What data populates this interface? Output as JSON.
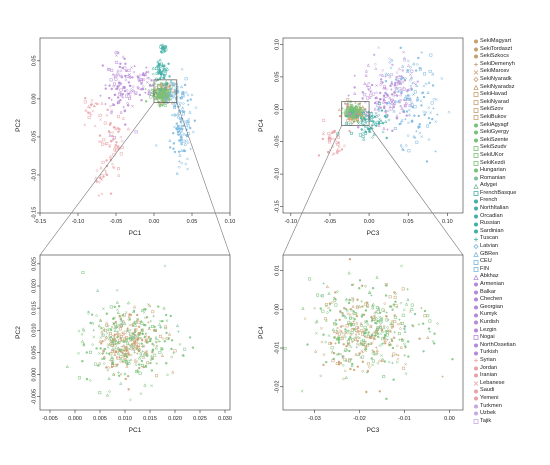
{
  "colors": {
    "szekely": "#c8a070",
    "hungarian": "#77c277",
    "romanian": "#7fbf9a",
    "western": "#42b0a6",
    "european": "#79b7e0",
    "caucasus": "#b789d8",
    "middle_east": "#e8a1a6",
    "central_asia": "#c7a9e0"
  },
  "legend": [
    {
      "label": "SekiMagyart",
      "group": "szekely",
      "symbol": "dot"
    },
    {
      "label": "SekiTordaszt",
      "group": "szekely",
      "symbol": "dot"
    },
    {
      "label": "SekiSzkocs",
      "group": "szekely",
      "symbol": "dot"
    },
    {
      "label": "SekiDemenyh",
      "group": "szekely",
      "symbol": "plus"
    },
    {
      "label": "SekiMarosv",
      "group": "szekely",
      "symbol": "cross"
    },
    {
      "label": "SekiNyaradk",
      "group": "szekely",
      "symbol": "diamond"
    },
    {
      "label": "SekiNyaradsz",
      "group": "szekely",
      "symbol": "triangle"
    },
    {
      "label": "SekiHavad",
      "group": "szekely",
      "symbol": "square"
    },
    {
      "label": "SekiNyarad",
      "group": "szekely",
      "symbol": "square"
    },
    {
      "label": "SekiSzov",
      "group": "szekely",
      "symbol": "square"
    },
    {
      "label": "SekiBukov",
      "group": "szekely",
      "symbol": "square"
    },
    {
      "label": "SekiAgyagf",
      "group": "hungarian",
      "symbol": "dot"
    },
    {
      "label": "SekiGyergy",
      "group": "hungarian",
      "symbol": "dot"
    },
    {
      "label": "SekiSzente",
      "group": "hungarian",
      "symbol": "dot"
    },
    {
      "label": "SekiSzudv",
      "group": "hungarian",
      "symbol": "square"
    },
    {
      "label": "SekiUKor",
      "group": "hungarian",
      "symbol": "square"
    },
    {
      "label": "SekiKezdi",
      "group": "hungarian",
      "symbol": "square"
    },
    {
      "label": "Hungarian",
      "group": "hungarian",
      "symbol": "dot"
    },
    {
      "label": "Romanian",
      "group": "romanian",
      "symbol": "dot"
    },
    {
      "label": "Adygei",
      "group": "romanian",
      "symbol": "triangle"
    },
    {
      "label": "FrenchBasque",
      "group": "western",
      "symbol": "square"
    },
    {
      "label": "French",
      "group": "western",
      "symbol": "dot"
    },
    {
      "label": "NorthItalian",
      "group": "western",
      "symbol": "dot"
    },
    {
      "label": "Orcadian",
      "group": "western",
      "symbol": "dot"
    },
    {
      "label": "Russian",
      "group": "western",
      "symbol": "dot"
    },
    {
      "label": "Sardinian",
      "group": "western",
      "symbol": "dot"
    },
    {
      "label": "Tuscan",
      "group": "western",
      "symbol": "plus"
    },
    {
      "label": "Latvian",
      "group": "european",
      "symbol": "diamond"
    },
    {
      "label": "GBRen",
      "group": "european",
      "symbol": "triangle"
    },
    {
      "label": "CEU",
      "group": "european",
      "symbol": "square"
    },
    {
      "label": "FIN",
      "group": "european",
      "symbol": "square"
    },
    {
      "label": "Abkhaz",
      "group": "caucasus",
      "symbol": "triangle"
    },
    {
      "label": "Armenian",
      "group": "caucasus",
      "symbol": "dot"
    },
    {
      "label": "Balkar",
      "group": "caucasus",
      "symbol": "dot"
    },
    {
      "label": "Chechen",
      "group": "caucasus",
      "symbol": "dot"
    },
    {
      "label": "Georgian",
      "group": "caucasus",
      "symbol": "dot"
    },
    {
      "label": "Kumyk",
      "group": "caucasus",
      "symbol": "dot"
    },
    {
      "label": "Kurdish",
      "group": "caucasus",
      "symbol": "dot"
    },
    {
      "label": "Lezgin",
      "group": "caucasus",
      "symbol": "dot"
    },
    {
      "label": "Nogai",
      "group": "caucasus",
      "symbol": "square"
    },
    {
      "label": "NorthOssetian",
      "group": "caucasus",
      "symbol": "dot"
    },
    {
      "label": "Turkish",
      "group": "caucasus",
      "symbol": "dot"
    },
    {
      "label": "Syrian",
      "group": "middle_east",
      "symbol": "plus"
    },
    {
      "label": "Jordan",
      "group": "middle_east",
      "symbol": "dot"
    },
    {
      "label": "Iranian",
      "group": "middle_east",
      "symbol": "dot"
    },
    {
      "label": "Lebanese",
      "group": "middle_east",
      "symbol": "cross"
    },
    {
      "label": "Saudi",
      "group": "middle_east",
      "symbol": "dot"
    },
    {
      "label": "Yemeni",
      "group": "middle_east",
      "symbol": "dot"
    },
    {
      "label": "Turkmen",
      "group": "central_asia",
      "symbol": "dot"
    },
    {
      "label": "Uzbek",
      "group": "central_asia",
      "symbol": "dot"
    },
    {
      "label": "Tajik",
      "group": "central_asia",
      "symbol": "square"
    }
  ],
  "chart_data": [
    {
      "type": "scatter",
      "xlabel": "PC1",
      "ylabel": "PC2",
      "xlim": [
        -0.15,
        0.1
      ],
      "ylim": [
        -0.15,
        0.08
      ],
      "xticks": [
        "-0.15",
        "-0.10",
        "-0.05",
        "0.00",
        "0.05",
        "0.10"
      ],
      "yticks": [
        "-0.15",
        "-0.10",
        "-0.05",
        "0.00",
        "0.05"
      ],
      "zoom_box": {
        "x": [
          0.0,
          0.03
        ],
        "y": [
          -0.005,
          0.025
        ]
      },
      "clusters": [
        {
          "group": "szekely",
          "cx": 0.012,
          "cy": 0.008,
          "sx": 0.006,
          "sy": 0.006,
          "n": 140
        },
        {
          "group": "hungarian",
          "cx": 0.01,
          "cy": 0.006,
          "sx": 0.006,
          "sy": 0.006,
          "n": 120
        },
        {
          "group": "caucasus",
          "cx": -0.045,
          "cy": 0.015,
          "sx": 0.012,
          "sy": 0.022,
          "n": 110
        },
        {
          "group": "caucasus",
          "cx": -0.015,
          "cy": 0.022,
          "sx": 0.008,
          "sy": 0.008,
          "n": 40
        },
        {
          "group": "european",
          "cx": 0.035,
          "cy": -0.04,
          "sx": 0.008,
          "sy": 0.025,
          "n": 100
        },
        {
          "group": "european",
          "cx": 0.028,
          "cy": 0.008,
          "sx": 0.008,
          "sy": 0.01,
          "n": 60
        },
        {
          "group": "western",
          "cx": 0.01,
          "cy": 0.035,
          "sx": 0.006,
          "sy": 0.008,
          "n": 60
        },
        {
          "group": "western",
          "cx": 0.012,
          "cy": 0.066,
          "sx": 0.002,
          "sy": 0.003,
          "n": 20
        },
        {
          "group": "middle_east",
          "cx": -0.055,
          "cy": -0.06,
          "sx": 0.01,
          "sy": 0.02,
          "n": 60
        },
        {
          "group": "middle_east",
          "cx": -0.08,
          "cy": -0.01,
          "sx": 0.01,
          "sy": 0.01,
          "n": 20
        },
        {
          "group": "middle_east",
          "cx": -0.07,
          "cy": -0.105,
          "sx": 0.004,
          "sy": 0.01,
          "n": 15
        }
      ]
    },
    {
      "type": "scatter",
      "xlabel": "PC3",
      "ylabel": "PC4",
      "xlim": [
        -0.11,
        0.12
      ],
      "ylim": [
        -0.16,
        0.11
      ],
      "xticks": [
        "-0.10",
        "-0.05",
        "0.00",
        "0.05",
        "0.10"
      ],
      "yticks": [
        "-0.15",
        "-0.10",
        "-0.05",
        "0.00",
        "0.05",
        "0.10"
      ],
      "zoom_box": {
        "x": [
          -0.035,
          0.0
        ],
        "y": [
          -0.025,
          0.012
        ]
      },
      "clusters": [
        {
          "group": "szekely",
          "cx": -0.018,
          "cy": -0.006,
          "sx": 0.006,
          "sy": 0.006,
          "n": 140
        },
        {
          "group": "hungarian",
          "cx": -0.02,
          "cy": -0.004,
          "sx": 0.006,
          "sy": 0.006,
          "n": 120
        },
        {
          "group": "caucasus",
          "cx": 0.02,
          "cy": 0.02,
          "sx": 0.018,
          "sy": 0.02,
          "n": 130
        },
        {
          "group": "european",
          "cx": 0.055,
          "cy": 0.01,
          "sx": 0.018,
          "sy": 0.035,
          "n": 130
        },
        {
          "group": "western",
          "cx": 0.0,
          "cy": -0.02,
          "sx": 0.012,
          "sy": 0.012,
          "n": 80
        },
        {
          "group": "middle_east",
          "cx": -0.045,
          "cy": -0.05,
          "sx": 0.008,
          "sy": 0.012,
          "n": 40
        },
        {
          "group": "central_asia",
          "cx": 0.035,
          "cy": 0.045,
          "sx": 0.015,
          "sy": 0.02,
          "n": 40
        }
      ]
    },
    {
      "type": "scatter",
      "xlabel": "PC1",
      "ylabel": "PC2",
      "xlim": [
        -0.007,
        0.031
      ],
      "ylim": [
        -0.008,
        0.027
      ],
      "xticks": [
        "-0.005",
        "0.000",
        "0.005",
        "0.010",
        "0.015",
        "0.020",
        "0.025",
        "0.030"
      ],
      "yticks": [
        "-0.005",
        "0.000",
        "0.005",
        "0.010",
        "0.015",
        "0.020",
        "0.025"
      ],
      "clusters": [
        {
          "group": "szekely",
          "cx": 0.0105,
          "cy": 0.0075,
          "sx": 0.0032,
          "sy": 0.0032,
          "n": 220
        },
        {
          "group": "hungarian",
          "cx": 0.0105,
          "cy": 0.007,
          "sx": 0.0045,
          "sy": 0.0045,
          "n": 220
        },
        {
          "group": "romanian",
          "cx": 0.011,
          "cy": 0.008,
          "sx": 0.005,
          "sy": 0.005,
          "n": 40
        }
      ]
    },
    {
      "type": "scatter",
      "xlabel": "PC3",
      "ylabel": "PC4",
      "xlim": [
        -0.037,
        0.003
      ],
      "ylim": [
        -0.026,
        0.014
      ],
      "xticks": [
        "-0.03",
        "-0.02",
        "-0.01",
        "0.00"
      ],
      "yticks": [
        "-0.02",
        "-0.01",
        "0.00",
        "0.01"
      ],
      "clusters": [
        {
          "group": "szekely",
          "cx": -0.019,
          "cy": -0.006,
          "sx": 0.0055,
          "sy": 0.005,
          "n": 220
        },
        {
          "group": "hungarian",
          "cx": -0.018,
          "cy": -0.005,
          "sx": 0.0065,
          "sy": 0.0058,
          "n": 220
        },
        {
          "group": "romanian",
          "cx": -0.017,
          "cy": -0.004,
          "sx": 0.0065,
          "sy": 0.0058,
          "n": 40
        }
      ]
    }
  ]
}
